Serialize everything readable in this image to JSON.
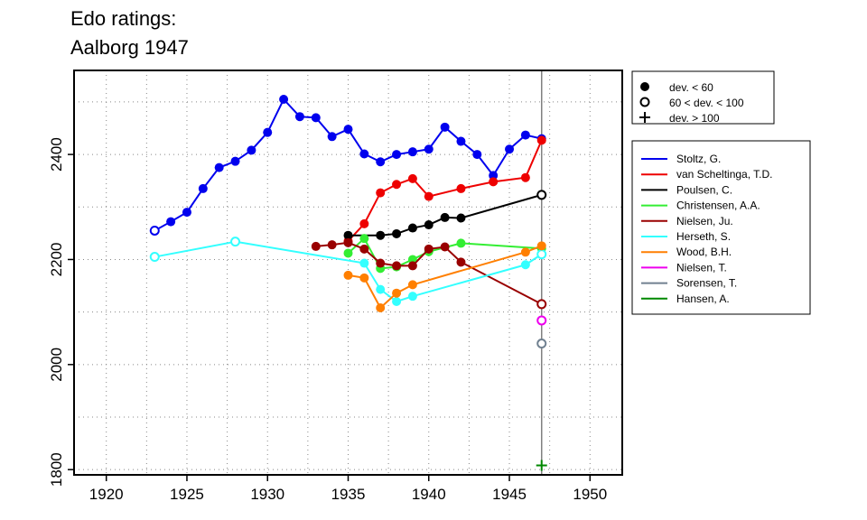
{
  "chart_data": {
    "type": "line",
    "title_lines": [
      "Edo ratings:",
      "Aalborg 1947"
    ],
    "xlabel": "",
    "ylabel": "",
    "xlim": [
      1918,
      1952
    ],
    "ylim": [
      1790,
      2560
    ],
    "x_ticks": [
      1920,
      1925,
      1930,
      1935,
      1940,
      1945,
      1950
    ],
    "y_ticks": [
      1800,
      2000,
      2200,
      2400
    ],
    "grid": true,
    "vline_x": 1947,
    "marker_legend": [
      {
        "marker": "filled",
        "label": "dev. < 60"
      },
      {
        "marker": "open",
        "label": "60 < dev. < 100"
      },
      {
        "marker": "plus",
        "label": "dev. > 100"
      }
    ],
    "series": [
      {
        "name": "Stoltz, G.",
        "color": "#0000ee",
        "points": [
          [
            1923,
            2255,
            "open"
          ],
          [
            1924,
            2272,
            "filled"
          ],
          [
            1925,
            2290,
            "filled"
          ],
          [
            1926,
            2335,
            "filled"
          ],
          [
            1927,
            2375,
            "filled"
          ],
          [
            1928,
            2387,
            "filled"
          ],
          [
            1929,
            2408,
            "filled"
          ],
          [
            1930,
            2442,
            "filled"
          ],
          [
            1931,
            2505,
            "filled"
          ],
          [
            1932,
            2472,
            "filled"
          ],
          [
            1933,
            2470,
            "filled"
          ],
          [
            1934,
            2434,
            "filled"
          ],
          [
            1935,
            2448,
            "filled"
          ],
          [
            1936,
            2401,
            "filled"
          ],
          [
            1937,
            2386,
            "filled"
          ],
          [
            1938,
            2400,
            "filled"
          ],
          [
            1939,
            2405,
            "filled"
          ],
          [
            1940,
            2410,
            "filled"
          ],
          [
            1941,
            2452,
            "filled"
          ],
          [
            1942,
            2425,
            "filled"
          ],
          [
            1943,
            2400,
            "filled"
          ],
          [
            1944,
            2360,
            "filled"
          ],
          [
            1945,
            2410,
            "filled"
          ],
          [
            1946,
            2437,
            "filled"
          ],
          [
            1947,
            2430,
            "filled"
          ]
        ]
      },
      {
        "name": "van Scheltinga, T.D.",
        "color": "#ee0000",
        "points": [
          [
            1935,
            2235,
            "filled"
          ],
          [
            1936,
            2268,
            "filled"
          ],
          [
            1937,
            2327,
            "filled"
          ],
          [
            1938,
            2343,
            "filled"
          ],
          [
            1939,
            2354,
            "filled"
          ],
          [
            1940,
            2320,
            "filled"
          ],
          [
            1942,
            2335,
            "filled"
          ],
          [
            1944,
            2348,
            "filled"
          ],
          [
            1946,
            2356,
            "filled"
          ],
          [
            1947,
            2427,
            "filled"
          ]
        ]
      },
      {
        "name": "Poulsen, C.",
        "color": "#000000",
        "points": [
          [
            1935,
            2246,
            "filled"
          ],
          [
            1937,
            2246,
            "filled"
          ],
          [
            1938,
            2249,
            "filled"
          ],
          [
            1939,
            2260,
            "filled"
          ],
          [
            1940,
            2266,
            "filled"
          ],
          [
            1941,
            2280,
            "filled"
          ],
          [
            1942,
            2279,
            "filled"
          ],
          [
            1947,
            2323,
            "open"
          ]
        ]
      },
      {
        "name": "Christensen, A.A.",
        "color": "#33ee33",
        "points": [
          [
            1935,
            2212,
            "filled"
          ],
          [
            1936,
            2240,
            "filled"
          ],
          [
            1937,
            2183,
            "filled"
          ],
          [
            1938,
            2186,
            "filled"
          ],
          [
            1939,
            2200,
            "filled"
          ],
          [
            1940,
            2215,
            "filled"
          ],
          [
            1942,
            2231,
            "filled"
          ],
          [
            1947,
            2221,
            "filled"
          ]
        ]
      },
      {
        "name": "Nielsen, Ju.",
        "color": "#990000",
        "points": [
          [
            1933,
            2225,
            "filled"
          ],
          [
            1934,
            2228,
            "filled"
          ],
          [
            1935,
            2232,
            "filled"
          ],
          [
            1936,
            2220,
            "filled"
          ],
          [
            1937,
            2193,
            "filled"
          ],
          [
            1938,
            2188,
            "filled"
          ],
          [
            1939,
            2188,
            "filled"
          ],
          [
            1940,
            2220,
            "filled"
          ],
          [
            1941,
            2224,
            "filled"
          ],
          [
            1942,
            2195,
            "filled"
          ],
          [
            1947,
            2115,
            "open"
          ]
        ]
      },
      {
        "name": "Herseth, S.",
        "color": "#33ffff",
        "points": [
          [
            1923,
            2205,
            "open"
          ],
          [
            1928,
            2234,
            "open"
          ],
          [
            1936,
            2193,
            "filled"
          ],
          [
            1937,
            2143,
            "filled"
          ],
          [
            1938,
            2120,
            "filled"
          ],
          [
            1939,
            2130,
            "filled"
          ],
          [
            1946,
            2190,
            "filled"
          ],
          [
            1947,
            2210,
            "open"
          ]
        ]
      },
      {
        "name": "Wood, B.H.",
        "color": "#ff7f00",
        "points": [
          [
            1935,
            2170,
            "filled"
          ],
          [
            1936,
            2165,
            "filled"
          ],
          [
            1937,
            2108,
            "filled"
          ],
          [
            1938,
            2136,
            "filled"
          ],
          [
            1939,
            2152,
            "filled"
          ],
          [
            1946,
            2214,
            "filled"
          ],
          [
            1947,
            2226,
            "filled"
          ]
        ]
      },
      {
        "name": "Nielsen, T.",
        "color": "#ee00ee",
        "points": [
          [
            1947,
            2084,
            "open"
          ]
        ]
      },
      {
        "name": "Sorensen, T.",
        "color": "#708090",
        "points": [
          [
            1947,
            2040,
            "open"
          ]
        ]
      },
      {
        "name": "Hansen, A.",
        "color": "#008800",
        "points": [
          [
            1947,
            1808,
            "plus"
          ]
        ]
      }
    ]
  }
}
